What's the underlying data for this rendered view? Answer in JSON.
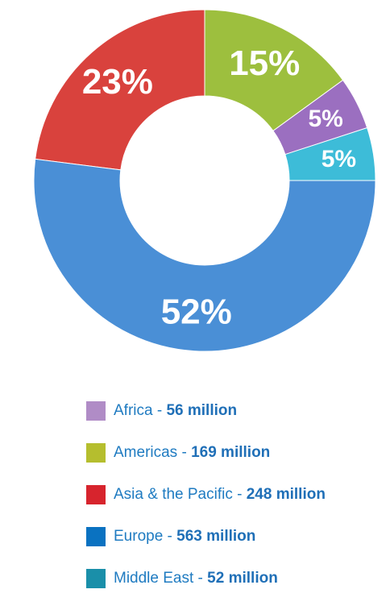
{
  "chart_data": {
    "type": "pie",
    "slices": [
      {
        "name": "Africa",
        "value": 5,
        "label": "5%",
        "amount": "56 million",
        "color": "#9b6fc0",
        "legend_color": "#b08cc6"
      },
      {
        "name": "Americas",
        "value": 15,
        "label": "15%",
        "amount": "169 million",
        "color": "#9dbf3e",
        "legend_color": "#b5be2e"
      },
      {
        "name": "Asia & the Pacific",
        "value": 23,
        "label": "23%",
        "amount": "248 million",
        "color": "#d9423d",
        "legend_color": "#d7242d"
      },
      {
        "name": "Europe",
        "value": 52,
        "label": "52%",
        "amount": "563 million",
        "color": "#4a8fd6",
        "legend_color": "#0a72c1"
      },
      {
        "name": "Middle East",
        "value": 5,
        "label": "5%",
        "amount": "52 million",
        "color": "#3dbcd8",
        "legend_color": "#1a8fa9"
      }
    ],
    "legend_position": "bottom"
  },
  "legend": {
    "separator": " - ",
    "unit": "million"
  }
}
